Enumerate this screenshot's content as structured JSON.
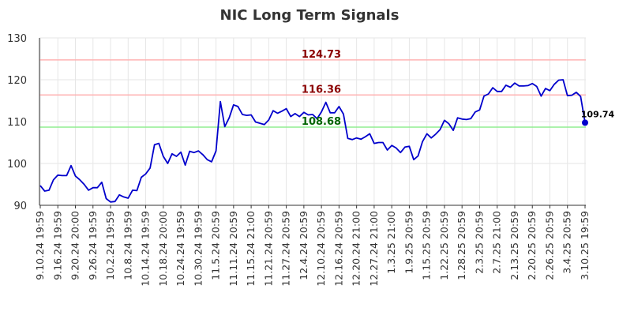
{
  "chart_data": {
    "type": "line",
    "title": "NIC Long Term Signals",
    "xlabel": "",
    "ylabel": "",
    "ylim": [
      90,
      130
    ],
    "yticks": [
      90,
      100,
      110,
      120,
      130
    ],
    "grid": true,
    "x_tick_labels": [
      "9.10.24 19:59",
      "9.16.24 19:59",
      "9.20.24 20:00",
      "9.26.24 19:59",
      "10.2.24 19:59",
      "10.8.24 19:59",
      "10.14.24 19:59",
      "10.18.24 20:00",
      "10.24.24 19:59",
      "10.30.24 19:59",
      "11.5.24 20:59",
      "11.11.24 20:59",
      "11.15.24 21:00",
      "11.21.24 20:59",
      "11.27.24 20:59",
      "12.4.24 20:59",
      "12.10.24 20:59",
      "12.16.24 20:59",
      "12.20.24 21:00",
      "12.27.24 21:00",
      "1.3.25 21:00",
      "1.9.25 20:59",
      "1.15.25 20:59",
      "1.22.25 20:59",
      "1.28.25 20:59",
      "2.3.25 20:59",
      "2.7.25 21:00",
      "2.13.25 20:59",
      "2.20.25 20:59",
      "2.26.25 20:59",
      "3.4.25 20:59",
      "3.10.25 19:59"
    ],
    "x_tick_every": 4,
    "series": [
      {
        "color": "#0000cc",
        "values": [
          94.7,
          93.4,
          93.6,
          96.1,
          97.2,
          97.1,
          97.1,
          99.5,
          97.0,
          96.1,
          95.0,
          93.6,
          94.2,
          94.2,
          95.5,
          91.6,
          90.8,
          90.9,
          92.5,
          92.0,
          91.7,
          93.6,
          93.5,
          96.7,
          97.5,
          98.9,
          104.5,
          104.8,
          101.7,
          100.0,
          102.3,
          101.7,
          102.7,
          99.6,
          102.9,
          102.6,
          103.0,
          102.1,
          100.9,
          100.4,
          103.0,
          114.8,
          108.8,
          110.9,
          114.0,
          113.6,
          111.7,
          111.5,
          111.6,
          109.9,
          109.6,
          109.3,
          110.4,
          112.6,
          112.0,
          112.5,
          113.1,
          111.2,
          111.9,
          111.2,
          112.2,
          111.6,
          111.7,
          110.7,
          112.3,
          114.6,
          112.1,
          112.1,
          113.6,
          111.8,
          106.0,
          105.7,
          106.1,
          105.8,
          106.4,
          107.1,
          104.8,
          105.0,
          105.0,
          103.2,
          104.3,
          103.7,
          102.6,
          103.9,
          104.1,
          100.9,
          101.8,
          105.2,
          107.1,
          106.1,
          107.0,
          108.1,
          110.3,
          109.5,
          107.9,
          110.9,
          110.6,
          110.5,
          110.7,
          112.3,
          112.8,
          116.1,
          116.6,
          118.1,
          117.2,
          117.2,
          118.7,
          118.2,
          119.2,
          118.5,
          118.5,
          118.6,
          119.1,
          118.4,
          116.1,
          117.9,
          117.4,
          118.9,
          119.9,
          120.0,
          116.2,
          116.3,
          117.0,
          116.0,
          109.74
        ]
      }
    ],
    "horizontal_lines": [
      {
        "value": 124.73,
        "label": "124.73",
        "color": "#ffb3b3",
        "label_color": "#8b0000"
      },
      {
        "value": 116.36,
        "label": "116.36",
        "color": "#ffb3b3",
        "label_color": "#8b0000"
      },
      {
        "value": 108.68,
        "label": "108.68",
        "color": "#90ee90",
        "label_color": "#006400"
      }
    ],
    "last_point": {
      "value": 109.74,
      "label": "109.74",
      "color": "#0000cc"
    }
  }
}
